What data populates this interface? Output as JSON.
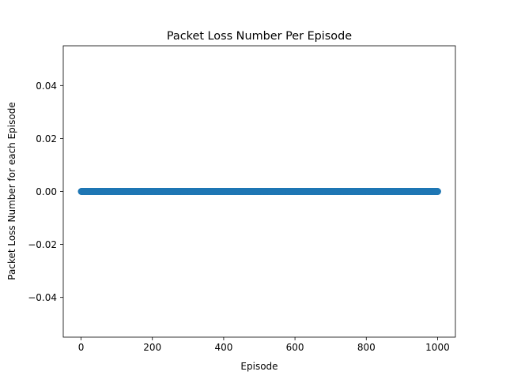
{
  "chart_data": {
    "type": "scatter",
    "title": "Packet Loss Number Per Episode",
    "xlabel": "Episode",
    "ylabel": "Packet Loss Number for each Episode",
    "xlim": [
      -50,
      1050
    ],
    "ylim": [
      -0.055,
      0.055
    ],
    "x_ticks": [
      0,
      200,
      400,
      600,
      800,
      1000
    ],
    "x_tick_labels": [
      "0",
      "200",
      "400",
      "600",
      "800",
      "1000"
    ],
    "y_ticks": [
      -0.04,
      -0.02,
      0.0,
      0.02,
      0.04
    ],
    "y_tick_labels": [
      "−0.04",
      "−0.02",
      "0.00",
      "0.02",
      "0.04"
    ],
    "grid": false,
    "series": [
      {
        "x_start": 1,
        "x_end": 1000,
        "x_step": 1,
        "y_constant": 0,
        "color": "#1f77b4"
      }
    ]
  }
}
